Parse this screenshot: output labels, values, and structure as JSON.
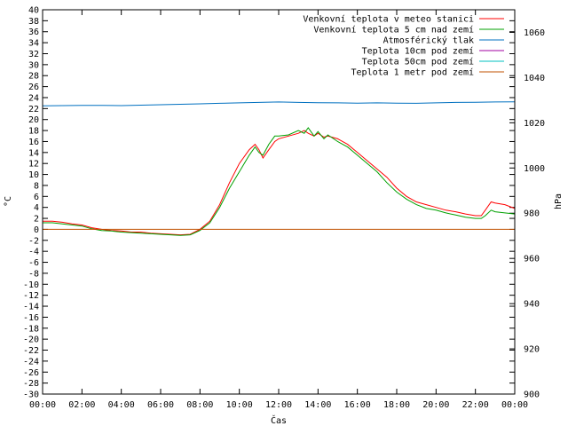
{
  "chart_data": {
    "type": "line",
    "xlabel": "Čas",
    "ylabel": "°C",
    "y2label": "hPa",
    "x_ticks": [
      "00:00",
      "02:00",
      "04:00",
      "06:00",
      "08:00",
      "10:00",
      "12:00",
      "14:00",
      "16:00",
      "18:00",
      "20:00",
      "22:00",
      "00:00"
    ],
    "xlim": [
      0,
      24
    ],
    "ylim": [
      -30,
      40
    ],
    "y_ticks": [
      40,
      38,
      36,
      34,
      32,
      30,
      28,
      26,
      24,
      22,
      20,
      18,
      16,
      14,
      12,
      10,
      8,
      6,
      4,
      2,
      0,
      -2,
      -4,
      -6,
      -8,
      -10,
      -12,
      -14,
      -16,
      -18,
      -20,
      -22,
      -24,
      -26,
      -28,
      -30
    ],
    "y2lim": [
      900,
      1070
    ],
    "y2_ticks": [
      1060,
      1040,
      1020,
      1000,
      980,
      960,
      940,
      920,
      900
    ],
    "grid": false,
    "legend_position": "top-right",
    "series": [
      {
        "name": "Venkovní teplota v meteo stanici",
        "color": "#ff0000",
        "axis": "left",
        "x": [
          0,
          0.5,
          1,
          1.5,
          2,
          2.5,
          3,
          3.5,
          4,
          4.5,
          5,
          5.5,
          6,
          6.5,
          7,
          7.5,
          8,
          8.5,
          9,
          9.5,
          10,
          10.5,
          10.8,
          11,
          11.2,
          11.5,
          11.8,
          12,
          12.5,
          13,
          13.3,
          13.5,
          13.8,
          14,
          14.3,
          14.5,
          15,
          15.5,
          16,
          16.5,
          17,
          17.5,
          18,
          18.5,
          19,
          19.5,
          20,
          20.5,
          21,
          21.5,
          22,
          22.3,
          22.5,
          22.8,
          23,
          23.5,
          24
        ],
        "values": [
          1.5,
          1.5,
          1.3,
          1.0,
          0.8,
          0.3,
          0,
          -0.2,
          -0.3,
          -0.5,
          -0.5,
          -0.7,
          -0.8,
          -0.9,
          -1.0,
          -0.9,
          0,
          1.5,
          4.5,
          8.5,
          12.0,
          14.5,
          15.5,
          14.5,
          13.0,
          14.5,
          16.0,
          16.5,
          17.0,
          17.5,
          18.0,
          17.5,
          17.0,
          17.5,
          16.8,
          17.0,
          16.5,
          15.5,
          14.0,
          12.5,
          11.0,
          9.5,
          7.5,
          6.0,
          5.0,
          4.5,
          4.0,
          3.5,
          3.2,
          2.8,
          2.5,
          2.5,
          3.5,
          5.0,
          4.8,
          4.5,
          3.8
        ]
      },
      {
        "name": "Venkovní teplota 5 cm nad zemí",
        "color": "#00a000",
        "axis": "left",
        "x": [
          0,
          0.5,
          1,
          1.5,
          2,
          2.5,
          3,
          3.5,
          4,
          4.5,
          5,
          5.5,
          6,
          6.5,
          7,
          7.5,
          8,
          8.5,
          9,
          9.5,
          10,
          10.5,
          10.8,
          11,
          11.2,
          11.5,
          11.8,
          12,
          12.5,
          13,
          13.3,
          13.5,
          13.8,
          14,
          14.3,
          14.5,
          15,
          15.5,
          16,
          16.5,
          17,
          17.5,
          18,
          18.5,
          19,
          19.5,
          20,
          20.5,
          21,
          21.5,
          22,
          22.3,
          22.5,
          22.8,
          23,
          23.5,
          24
        ],
        "values": [
          1.2,
          1.2,
          1.0,
          0.8,
          0.6,
          0.1,
          -0.2,
          -0.3,
          -0.5,
          -0.6,
          -0.7,
          -0.8,
          -0.9,
          -1.0,
          -1.1,
          -1.0,
          -0.2,
          1.2,
          4.0,
          7.5,
          10.5,
          13.5,
          15.0,
          14.0,
          13.5,
          15.5,
          17.0,
          17.0,
          17.2,
          18.0,
          17.5,
          18.5,
          17.0,
          17.8,
          16.5,
          17.2,
          16.0,
          15.0,
          13.5,
          12.0,
          10.5,
          8.5,
          6.8,
          5.5,
          4.5,
          3.8,
          3.5,
          3.0,
          2.6,
          2.2,
          2.0,
          2.0,
          2.5,
          3.5,
          3.2,
          3.0,
          2.8
        ]
      },
      {
        "name": "Atmosférický tlak",
        "color": "#0070c0",
        "axis": "right",
        "x": [
          0,
          1,
          2,
          3,
          4,
          5,
          6,
          7,
          8,
          9,
          10,
          11,
          12,
          13,
          14,
          15,
          16,
          17,
          18,
          19,
          20,
          21,
          22,
          23,
          24
        ],
        "values": [
          1027.5,
          1027.6,
          1027.7,
          1027.7,
          1027.6,
          1027.8,
          1028.0,
          1028.2,
          1028.4,
          1028.6,
          1028.8,
          1029.0,
          1029.2,
          1029.0,
          1028.9,
          1028.8,
          1028.7,
          1028.8,
          1028.7,
          1028.6,
          1028.8,
          1029.0,
          1029.1,
          1029.2,
          1029.3
        ]
      },
      {
        "name": "Teplota 10cm pod zemí",
        "color": "#a000a0",
        "axis": "left",
        "x": [],
        "values": []
      },
      {
        "name": "Teplota 50cm pod zemí",
        "color": "#00c0c0",
        "axis": "left",
        "x": [],
        "values": []
      },
      {
        "name": "Teplota 1 metr pod zemí",
        "color": "#c05000",
        "axis": "left",
        "x": [
          0,
          24
        ],
        "values": [
          0,
          0
        ]
      }
    ]
  }
}
